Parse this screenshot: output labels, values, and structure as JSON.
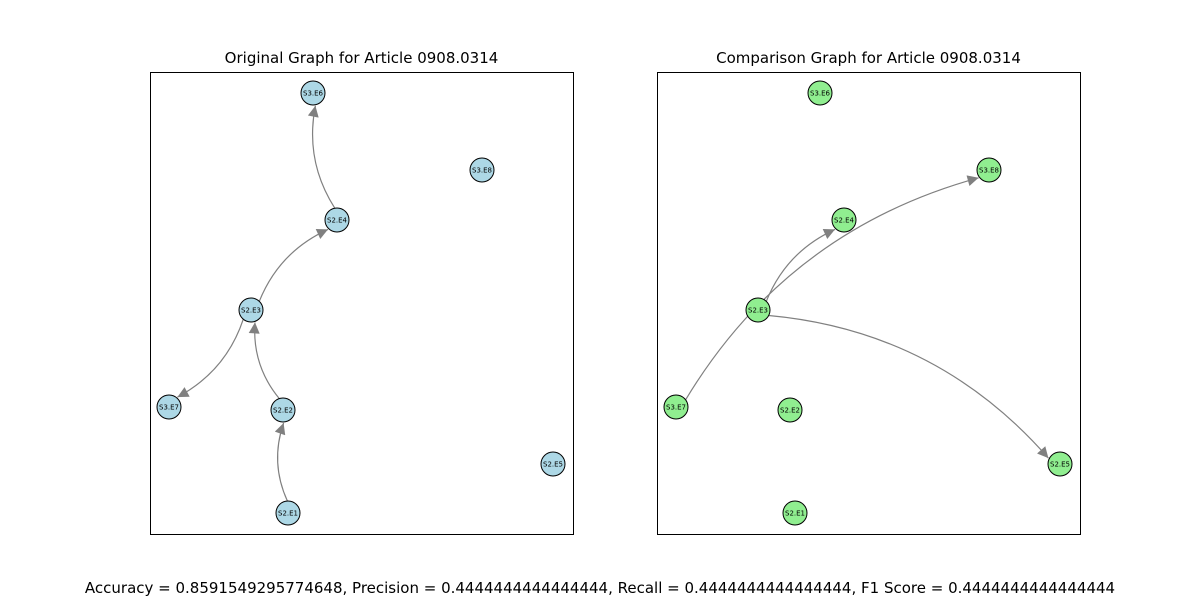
{
  "colors": {
    "original_node": "#add8e6",
    "comparison_node": "#90ee90",
    "edge": "#808080"
  },
  "graphs": [
    {
      "title": "Original Graph for Article 0908.0314",
      "node_color": "#add8e6",
      "nodes": [
        "S3.E6",
        "S3.E8",
        "S2.E4",
        "S2.E3",
        "S3.E7",
        "S2.E2",
        "S2.E5",
        "S2.E1"
      ],
      "edges": [
        {
          "from": "S2.E1",
          "to": "S2.E2"
        },
        {
          "from": "S2.E2",
          "to": "S2.E3"
        },
        {
          "from": "S2.E3",
          "to": "S2.E4"
        },
        {
          "from": "S2.E4",
          "to": "S3.E6"
        },
        {
          "from": "S2.E3",
          "to": "S3.E7"
        }
      ]
    },
    {
      "title": "Comparison Graph for Article 0908.0314",
      "node_color": "#90ee90",
      "nodes": [
        "S3.E6",
        "S3.E8",
        "S2.E4",
        "S2.E3",
        "S3.E7",
        "S2.E2",
        "S2.E5",
        "S2.E1"
      ],
      "edges": [
        {
          "from": "S2.E3",
          "to": "S2.E4"
        },
        {
          "from": "S3.E7",
          "to": "S3.E8"
        },
        {
          "from": "S2.E3",
          "to": "S2.E5"
        }
      ]
    }
  ],
  "metrics": "Accuracy = 0.8591549295774648, Precision = 0.4444444444444444, Recall = 0.4444444444444444, F1 Score = 0.4444444444444444"
}
